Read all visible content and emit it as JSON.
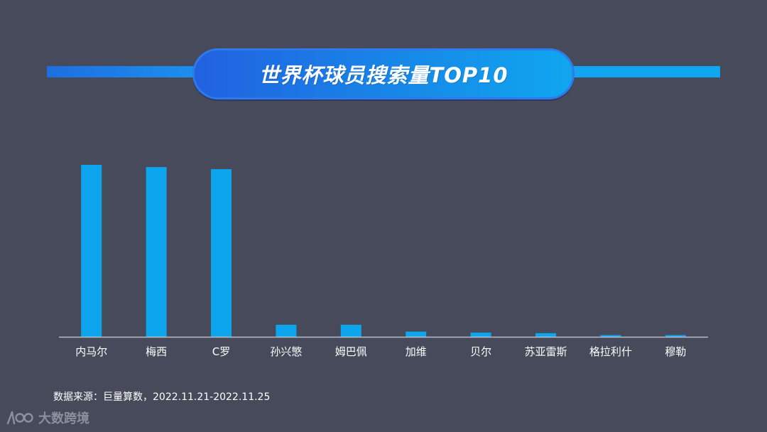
{
  "title": "世界杯球员搜索量TOP10",
  "source_note": "数据来源：巨量算数，2022.11.21-2022.11.25",
  "watermark": "大数跨境",
  "colors": {
    "background": "#464a5a",
    "bar": "#0ea5ef",
    "axis": "#b8bcc6",
    "title_gradient_start": "#2161e0",
    "title_gradient_end": "#0fa7ef"
  },
  "chart_data": {
    "type": "bar",
    "title": "世界杯球员搜索量TOP10",
    "categories": [
      "内马尔",
      "梅西",
      "C罗",
      "孙兴慜",
      "姆巴佩",
      "加维",
      "贝尔",
      "苏亚雷斯",
      "格拉利什",
      "穆勒"
    ],
    "values": [
      100,
      98.7,
      97.5,
      7,
      7,
      3,
      2.4,
      2.1,
      1,
      1
    ],
    "ylim": [
      0,
      100
    ],
    "grid": false,
    "legend": "none"
  }
}
